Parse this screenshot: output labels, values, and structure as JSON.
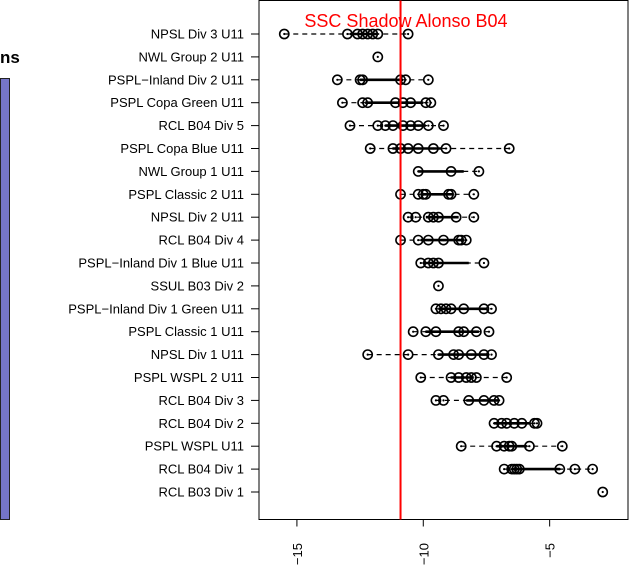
{
  "background_fragments": {
    "text_ns": "ns",
    "text_comma": ",",
    "panel_color": "#7575c8"
  },
  "chart_data": {
    "type": "scatter",
    "title": "",
    "xlabel": "",
    "ylabel": "",
    "xlim": [
      -16.5,
      -1.9
    ],
    "x_ticks": [
      -15,
      -10,
      -5
    ],
    "grid": false,
    "colors": {
      "points": "#000000",
      "reference_line": "#ff0000",
      "reference_label": "#ff0000"
    },
    "reference_line": {
      "label": "SSC Shadow Alonso B04",
      "x": -10.9
    },
    "categories": [
      "NPSL Div 3 U11",
      "NWL Group 2 U11",
      "PSPL−Inland Div 2 U11",
      "PSPL Copa Green U11",
      "RCL B04 Div 5",
      "PSPL Copa Blue U11",
      "NWL Group 1 U11",
      "PSPL Classic 2 U11",
      "NPSL Div 2 U11",
      "RCL B04 Div 4",
      "PSPL−Inland Div 1 Blue U11",
      "SSUL B03 Div 2",
      "PSPL−Inland Div 1 Green U11",
      "PSPL Classic 1 U11",
      "NPSL Div 1 U11",
      "PSPL WSPL 2 U11",
      "RCL B04 Div 3",
      "RCL B04 Div 2",
      "PSPL WSPL U11",
      "RCL B04 Div 1",
      "RCL B03 Div 1"
    ],
    "groups": [
      {
        "values": [
          -15.5,
          -13,
          -12.6,
          -12.4,
          -12.2,
          -12.0,
          -11.8,
          -10.6
        ],
        "box": [
          -12.9,
          -11.8
        ]
      },
      {
        "values": [
          -11.8
        ],
        "box": null
      },
      {
        "values": [
          -13.4,
          -12.5,
          -12.4,
          -10.9,
          -10.7,
          -9.8
        ],
        "box": [
          -12.5,
          -10.8
        ]
      },
      {
        "values": [
          -13.2,
          -12.4,
          -12.2,
          -11.1,
          -10.8,
          -10.5,
          -9.9,
          -9.7
        ],
        "box": [
          -12.3,
          -10.0
        ]
      },
      {
        "values": [
          -12.9,
          -11.8,
          -11.5,
          -11.2,
          -10.8,
          -10.5,
          -10.2,
          -9.8,
          -9.2
        ],
        "box": [
          -11.5,
          -9.9
        ]
      },
      {
        "values": [
          -12.1,
          -11.2,
          -10.9,
          -10.6,
          -10.2,
          -9.6,
          -9.1,
          -6.6
        ],
        "box": [
          -11.2,
          -9.3
        ]
      },
      {
        "values": [
          -10.2,
          -8.9,
          -7.8
        ],
        "box": [
          -10.2,
          -8.4
        ]
      },
      {
        "values": [
          -10.9,
          -10.2,
          -10.0,
          -9.9,
          -9.0,
          -8.9,
          -8.0
        ],
        "box": [
          -10.1,
          -8.8
        ]
      },
      {
        "values": [
          -10.6,
          -10.3,
          -9.8,
          -9.6,
          -9.4,
          -8.7,
          -8.0
        ],
        "box": [
          -9.9,
          -8.6
        ]
      },
      {
        "values": [
          -10.9,
          -10.2,
          -9.8,
          -9.2,
          -8.6,
          -8.5,
          -8.3
        ],
        "box": [
          -10.1,
          -8.5
        ]
      },
      {
        "values": [
          -10.1,
          -9.8,
          -9.6,
          -9.4,
          -7.6
        ],
        "box": [
          -10.0,
          -8.2
        ]
      },
      {
        "values": [
          -9.4
        ],
        "box": null
      },
      {
        "values": [
          -9.5,
          -9.3,
          -9.1,
          -8.9,
          -8.4,
          -7.6,
          -7.3
        ],
        "box": [
          -9.4,
          -7.5
        ]
      },
      {
        "values": [
          -10.4,
          -9.9,
          -9.5,
          -8.6,
          -8.4,
          -7.9,
          -7.4
        ],
        "box": [
          -9.9,
          -7.8
        ]
      },
      {
        "values": [
          -12.2,
          -10.6,
          -9.4,
          -8.8,
          -8.6,
          -8.1,
          -7.6,
          -7.3
        ],
        "box": [
          -9.4,
          -7.4
        ]
      },
      {
        "values": [
          -10.1,
          -8.9,
          -8.6,
          -8.3,
          -8.1,
          -7.9,
          -6.7
        ],
        "box": [
          -8.9,
          -8.0
        ]
      },
      {
        "values": [
          -9.5,
          -9.2,
          -8.2,
          -7.6,
          -7.2,
          -7.0
        ],
        "box": [
          -8.3,
          -7.0
        ]
      },
      {
        "values": [
          -7.2,
          -6.9,
          -6.7,
          -6.4,
          -6.1,
          -5.6,
          -5.5
        ],
        "box": [
          -7.2,
          -5.8
        ]
      },
      {
        "values": [
          -8.5,
          -7.1,
          -6.8,
          -6.6,
          -6.5,
          -5.8,
          -4.5
        ],
        "box": [
          -7.1,
          -5.9
        ]
      },
      {
        "values": [
          -6.8,
          -6.5,
          -6.4,
          -6.3,
          -6.2,
          -4.6,
          -4.0,
          -3.3
        ],
        "box": [
          -6.5,
          -4.6
        ]
      },
      {
        "values": [
          -2.9
        ],
        "box": null
      }
    ]
  }
}
